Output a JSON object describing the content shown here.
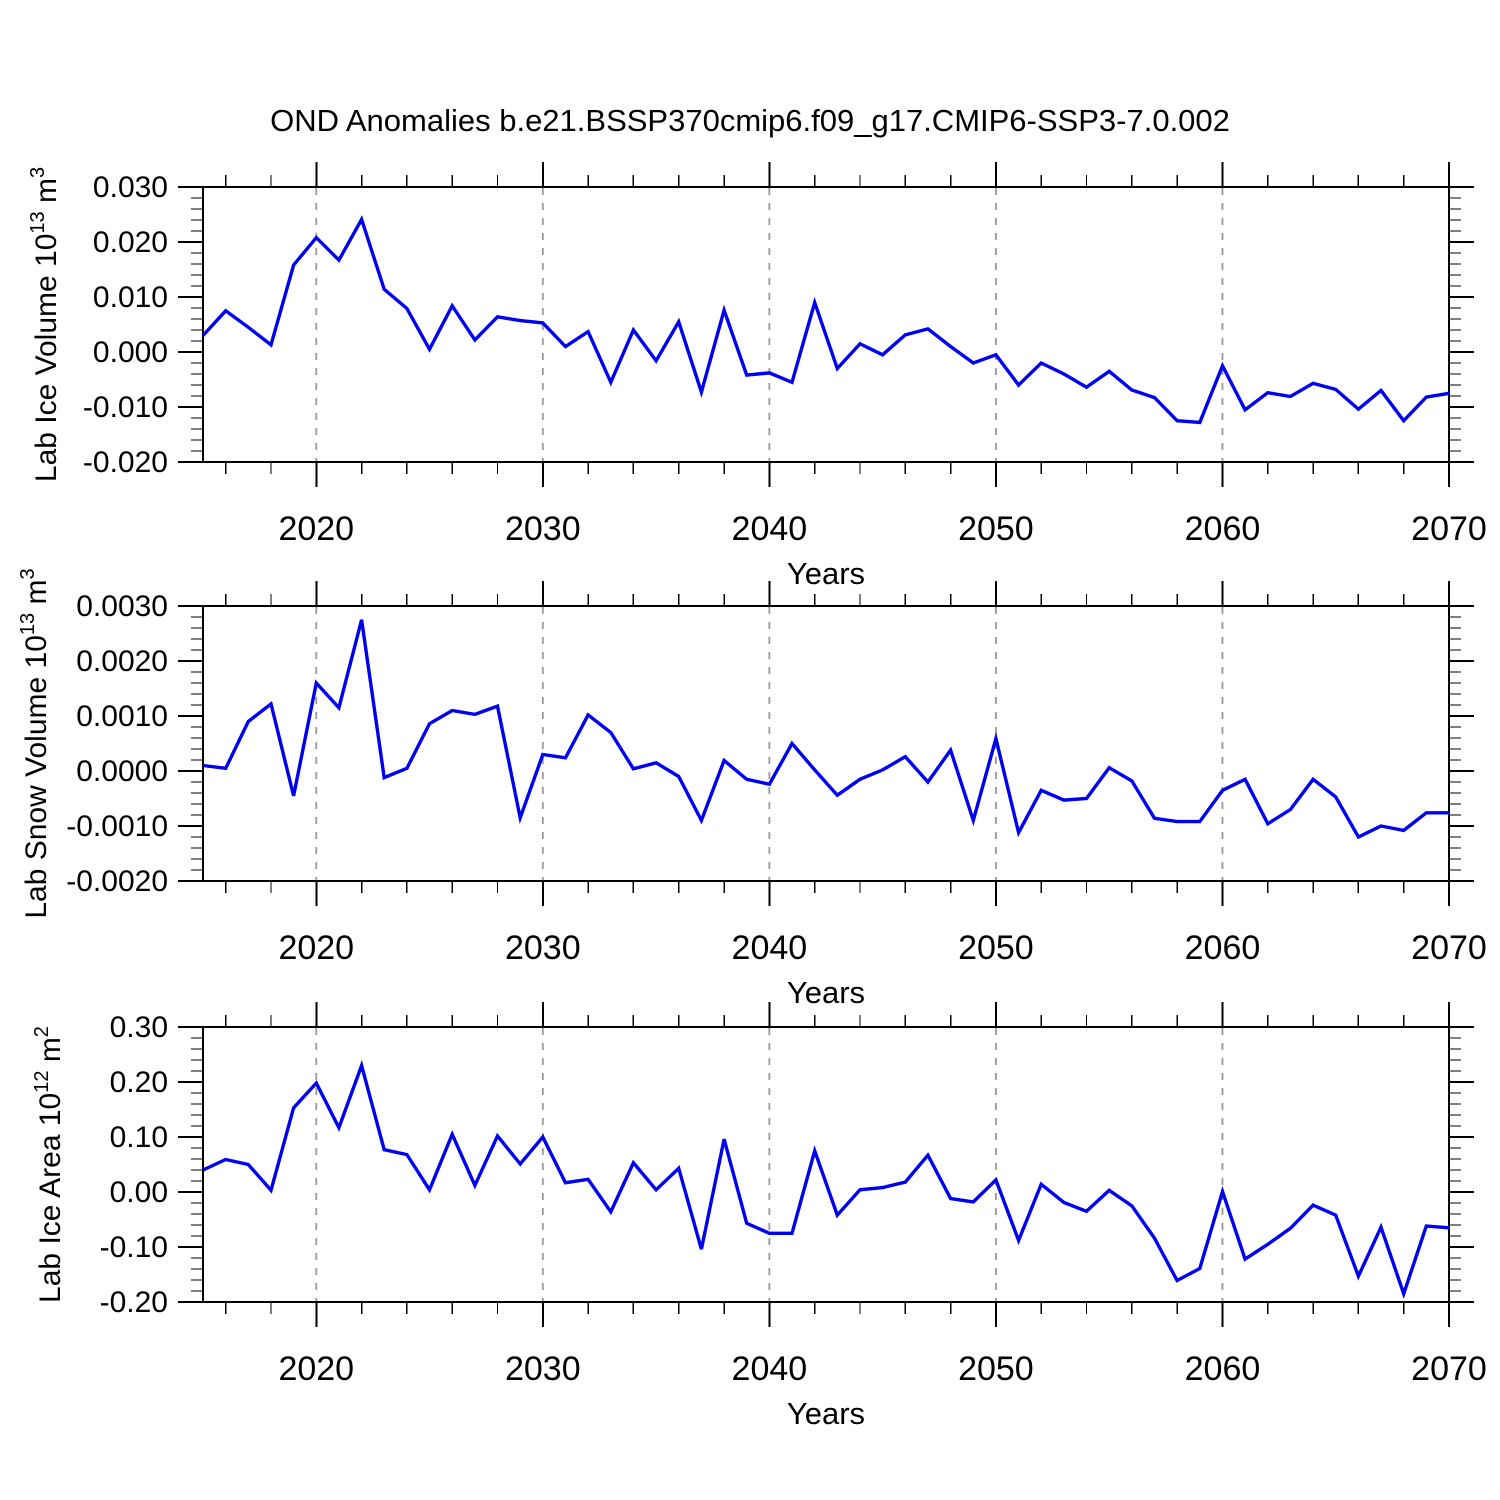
{
  "title": "OND Anomalies b.e21.BSSP370cmip6.f09_g17.CMIP6-SSP3-7.0.002",
  "colors": {
    "line": "#0000f0",
    "grid": "#999999",
    "axis": "#000000"
  },
  "x_axis": {
    "label": "Years",
    "range": [
      2015,
      2070
    ],
    "major_ticks": [
      2020,
      2030,
      2040,
      2050,
      2060,
      2070
    ],
    "minor_step": 2,
    "grid_years": [
      2020,
      2030,
      2040,
      2050,
      2060
    ],
    "grid_style": "dashed",
    "years": [
      2015,
      2016,
      2017,
      2018,
      2019,
      2020,
      2021,
      2022,
      2023,
      2024,
      2025,
      2026,
      2027,
      2028,
      2029,
      2030,
      2031,
      2032,
      2033,
      2034,
      2035,
      2036,
      2037,
      2038,
      2039,
      2040,
      2041,
      2042,
      2043,
      2044,
      2045,
      2046,
      2047,
      2048,
      2049,
      2050,
      2051,
      2052,
      2053,
      2054,
      2055,
      2056,
      2057,
      2058,
      2059,
      2060,
      2061,
      2062,
      2063,
      2064,
      2065,
      2066,
      2067,
      2068,
      2069,
      2070
    ]
  },
  "chart_data": [
    {
      "type": "line",
      "name": "lab-ice-volume",
      "xlabel": "Years",
      "ylabel": "Lab Ice Volume 10^13 m^3",
      "ylabel_parts": [
        {
          "t": "Lab Ice Volume 10"
        },
        {
          "t": "13",
          "sup": true
        },
        {
          "t": " m"
        },
        {
          "t": "3",
          "sup": true
        }
      ],
      "ylim": [
        -0.02,
        0.03
      ],
      "ytick_step": 0.01,
      "yminor_step": 0.002,
      "ydecimals": 3,
      "values": [
        0.003,
        0.0075,
        0.0045,
        0.0013,
        0.0158,
        0.0208,
        0.0167,
        0.0241,
        0.0114,
        0.0079,
        0.0005,
        0.0084,
        0.0022,
        0.0064,
        0.0057,
        0.0053,
        0.001,
        0.0037,
        -0.0055,
        0.004,
        -0.0016,
        0.0055,
        -0.0073,
        0.0076,
        -0.0042,
        -0.0038,
        -0.0055,
        0.009,
        -0.003,
        0.0015,
        -0.0005,
        0.0031,
        0.0042,
        0.001,
        -0.002,
        -0.0005,
        -0.006,
        -0.002,
        -0.004,
        -0.0064,
        -0.0035,
        -0.0069,
        -0.0083,
        -0.0125,
        -0.0128,
        -0.0025,
        -0.0105,
        -0.0074,
        -0.0081,
        -0.0057,
        -0.0068,
        -0.0104,
        -0.007,
        -0.0125,
        -0.0082,
        -0.0075
      ]
    },
    {
      "type": "line",
      "name": "lab-snow-volume",
      "xlabel": "Years",
      "ylabel": "Lab Snow Volume 10^13 m^3",
      "ylabel_parts": [
        {
          "t": "Lab Snow Volume 10"
        },
        {
          "t": "13",
          "sup": true
        },
        {
          "t": " m"
        },
        {
          "t": "3",
          "sup": true
        }
      ],
      "ylim": [
        -0.002,
        0.003
      ],
      "ytick_step": 0.001,
      "yminor_step": 0.0002,
      "ydecimals": 4,
      "values": [
        0.0001,
        5e-05,
        0.0009,
        0.00122,
        -0.00045,
        0.0016,
        0.00115,
        0.00275,
        -0.00012,
        5e-05,
        0.00086,
        0.0011,
        0.00103,
        0.00118,
        -0.00085,
        0.0003,
        0.00024,
        0.00102,
        0.0007,
        4e-05,
        0.00015,
        -0.0001,
        -0.0009,
        0.00019,
        -0.00015,
        -0.00024,
        0.0005,
        2e-05,
        -0.00044,
        -0.00015,
        2e-05,
        0.00026,
        -0.0002,
        0.00038,
        -0.0009,
        0.00059,
        -0.00112,
        -0.00035,
        -0.00053,
        -0.0005,
        6e-05,
        -0.00018,
        -0.00086,
        -0.00092,
        -0.00092,
        -0.00035,
        -0.00015,
        -0.00096,
        -0.0007,
        -0.00015,
        -0.00047,
        -0.0012,
        -0.001,
        -0.00108,
        -0.00076,
        -0.00076
      ]
    },
    {
      "type": "line",
      "name": "lab-ice-area",
      "xlabel": "Years",
      "ylabel": "Lab Ice Area 10^12 m^2",
      "ylabel_parts": [
        {
          "t": "Lab Ice Area 10"
        },
        {
          "t": "12",
          "sup": true
        },
        {
          "t": " m"
        },
        {
          "t": "2",
          "sup": true
        }
      ],
      "ylim": [
        -0.2,
        0.3
      ],
      "ytick_step": 0.1,
      "yminor_step": 0.02,
      "ydecimals": 2,
      "values": [
        0.04,
        0.059,
        0.05,
        0.003,
        0.153,
        0.198,
        0.117,
        0.23,
        0.077,
        0.068,
        0.004,
        0.105,
        0.012,
        0.102,
        0.051,
        0.1,
        0.017,
        0.023,
        -0.036,
        0.053,
        0.004,
        0.043,
        -0.104,
        0.096,
        -0.057,
        -0.075,
        -0.075,
        0.075,
        -0.042,
        0.004,
        0.008,
        0.018,
        0.067,
        -0.012,
        -0.018,
        0.022,
        -0.088,
        0.014,
        -0.019,
        -0.035,
        0.003,
        -0.025,
        -0.084,
        -0.161,
        -0.139,
        0.001,
        -0.122,
        -0.095,
        -0.066,
        -0.024,
        -0.042,
        -0.153,
        -0.064,
        -0.185,
        -0.062,
        -0.065
      ]
    }
  ]
}
